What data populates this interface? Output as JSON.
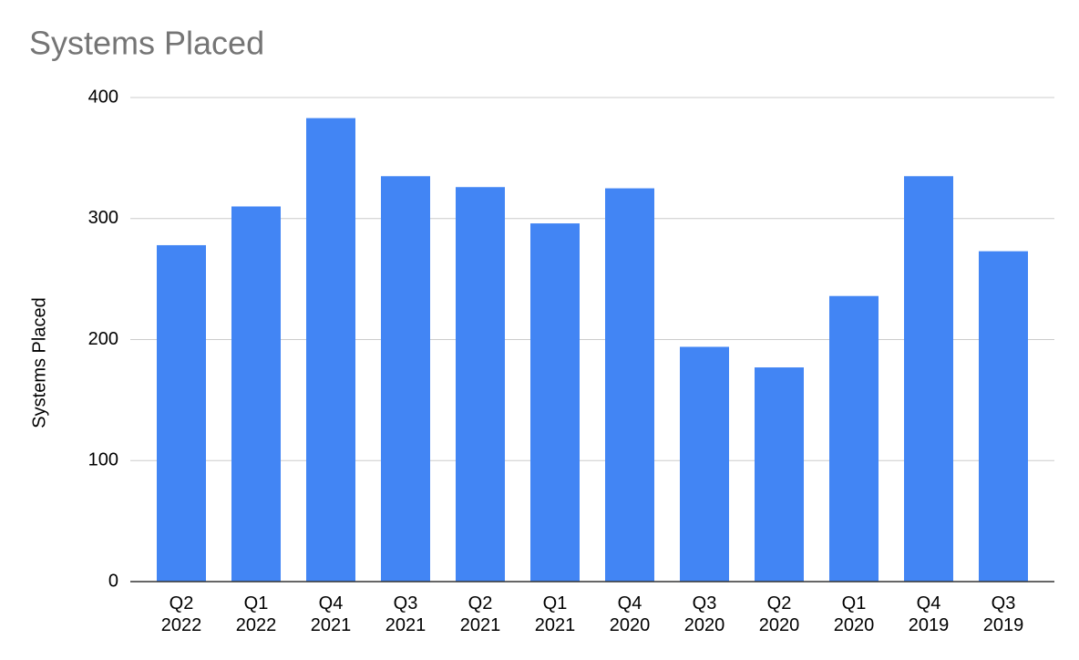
{
  "chart_data": {
    "type": "bar",
    "title": "Systems Placed",
    "y_label": "Systems Placed",
    "categories": [
      "Q2 2022",
      "Q1 2022",
      "Q4 2021",
      "Q3 2021",
      "Q2 2021",
      "Q1 2021",
      "Q4 2020",
      "Q3 2020",
      "Q2 2020",
      "Q1 2020",
      "Q4 2019",
      "Q3 2019"
    ],
    "values": [
      278,
      310,
      383,
      335,
      326,
      296,
      325,
      194,
      177,
      236,
      335,
      273
    ],
    "color": "#4285f4",
    "ylim": [
      0,
      400
    ],
    "yticks": [
      0,
      100,
      200,
      300,
      400
    ],
    "grid": true
  }
}
